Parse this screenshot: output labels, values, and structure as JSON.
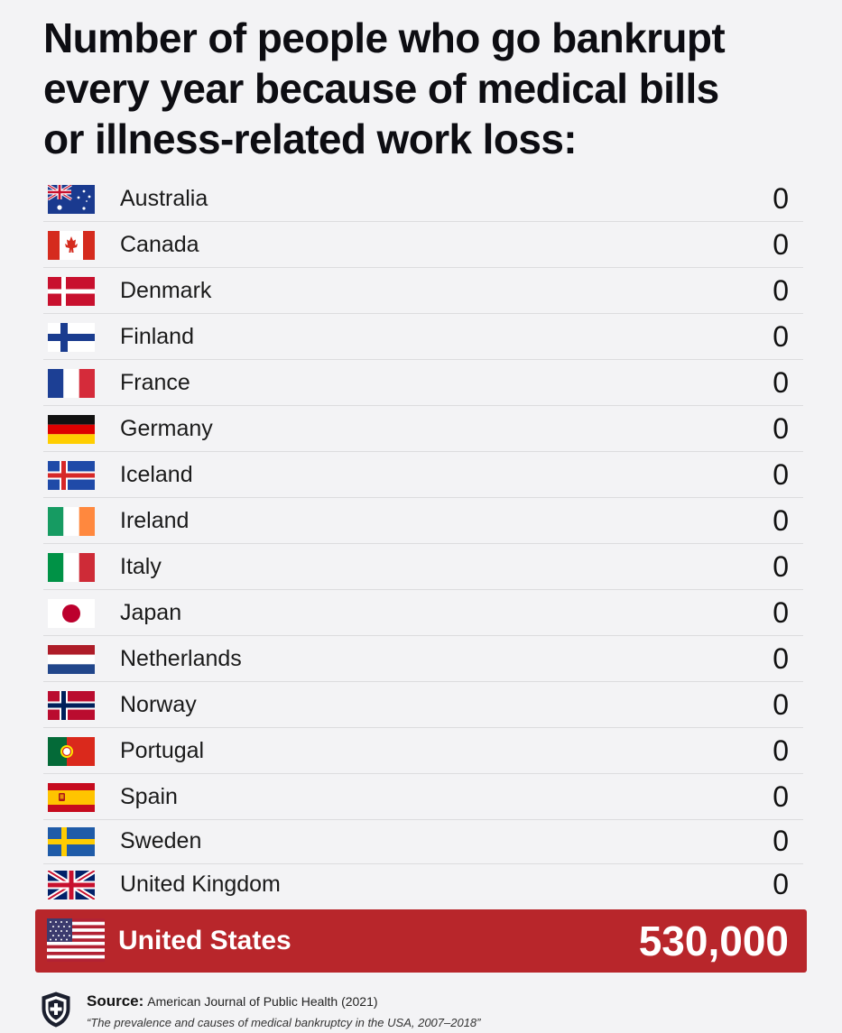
{
  "title_lines": [
    "Number of people who go bankrupt",
    "every year because of medical bills",
    "or illness-related work loss:"
  ],
  "rows": [
    {
      "country": "Australia",
      "value": "0",
      "flag": "australia-flag-icon"
    },
    {
      "country": "Canada",
      "value": "0",
      "flag": "canada-flag-icon"
    },
    {
      "country": "Denmark",
      "value": "0",
      "flag": "denmark-flag-icon"
    },
    {
      "country": "Finland",
      "value": "0",
      "flag": "finland-flag-icon"
    },
    {
      "country": "France",
      "value": "0",
      "flag": "france-flag-icon"
    },
    {
      "country": "Germany",
      "value": "0",
      "flag": "germany-flag-icon"
    },
    {
      "country": "Iceland",
      "value": "0",
      "flag": "iceland-flag-icon"
    },
    {
      "country": "Ireland",
      "value": "0",
      "flag": "ireland-flag-icon"
    },
    {
      "country": "Italy",
      "value": "0",
      "flag": "italy-flag-icon"
    },
    {
      "country": "Japan",
      "value": "0",
      "flag": "japan-flag-icon"
    },
    {
      "country": "Netherlands",
      "value": "0",
      "flag": "netherlands-flag-icon"
    },
    {
      "country": "Norway",
      "value": "0",
      "flag": "norway-flag-icon"
    },
    {
      "country": "Portugal",
      "value": "0",
      "flag": "portugal-flag-icon"
    },
    {
      "country": "Spain",
      "value": "0",
      "flag": "spain-flag-icon"
    },
    {
      "country": "Sweden",
      "value": "0",
      "flag": "sweden-flag-icon"
    },
    {
      "country": "United Kingdom",
      "value": "0",
      "flag": "uk-flag-icon"
    }
  ],
  "highlight": {
    "country": "United States",
    "value": "530,000",
    "flag": "us-flag-icon",
    "color": "#b8262b"
  },
  "source": {
    "label": "Source:",
    "text": "American Journal of Public Health (2021)",
    "study": "“The prevalence and causes of medical bankruptcy in the USA, 2007–2018”",
    "icon": "shield-cross-icon"
  }
}
